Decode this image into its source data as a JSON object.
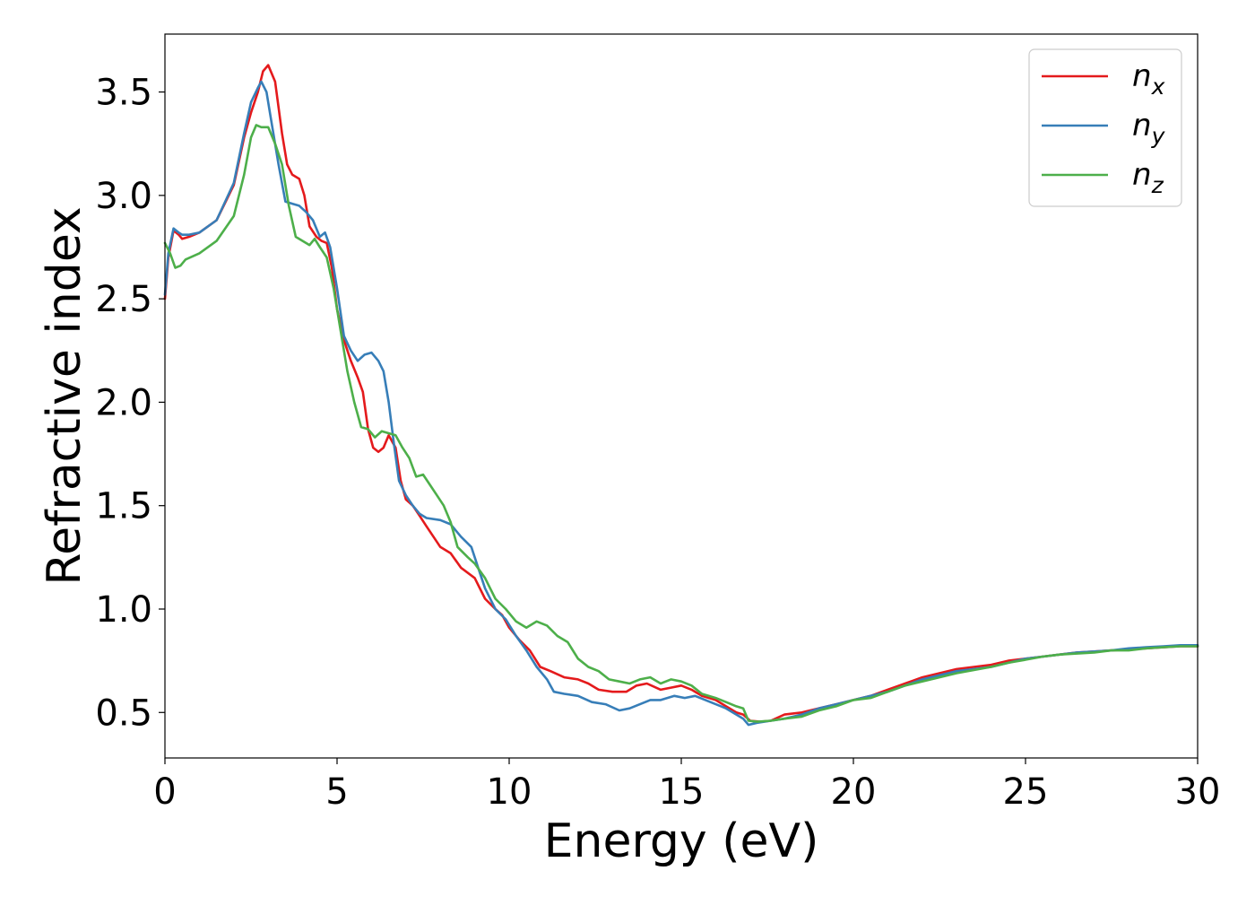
{
  "chart_data": {
    "type": "line",
    "title": "",
    "xlabel": "Energy (eV)",
    "ylabel": "Refractive index",
    "xlim": [
      0,
      30
    ],
    "ylim": [
      0.28,
      3.78
    ],
    "xticks": [
      0,
      5,
      10,
      15,
      20,
      25,
      30
    ],
    "yticks": [
      0.5,
      1.0,
      1.5,
      2.0,
      2.5,
      3.0,
      3.5
    ],
    "grid": false,
    "legend_position": "top-right",
    "series": [
      {
        "name": "n",
        "subscript": "x",
        "color": "#e41a1c",
        "points": [
          [
            0,
            2.5
          ],
          [
            0.1,
            2.7
          ],
          [
            0.25,
            2.83
          ],
          [
            0.4,
            2.81
          ],
          [
            0.5,
            2.79
          ],
          [
            0.7,
            2.8
          ],
          [
            1.0,
            2.82
          ],
          [
            1.5,
            2.88
          ],
          [
            2.0,
            3.05
          ],
          [
            2.3,
            3.28
          ],
          [
            2.5,
            3.4
          ],
          [
            2.7,
            3.5
          ],
          [
            2.85,
            3.6
          ],
          [
            3.0,
            3.63
          ],
          [
            3.2,
            3.55
          ],
          [
            3.4,
            3.3
          ],
          [
            3.55,
            3.15
          ],
          [
            3.7,
            3.1
          ],
          [
            3.9,
            3.08
          ],
          [
            4.05,
            3.0
          ],
          [
            4.2,
            2.85
          ],
          [
            4.4,
            2.8
          ],
          [
            4.55,
            2.78
          ],
          [
            4.7,
            2.77
          ],
          [
            4.85,
            2.65
          ],
          [
            5.0,
            2.45
          ],
          [
            5.2,
            2.3
          ],
          [
            5.4,
            2.2
          ],
          [
            5.6,
            2.12
          ],
          [
            5.75,
            2.05
          ],
          [
            5.9,
            1.87
          ],
          [
            6.05,
            1.78
          ],
          [
            6.2,
            1.76
          ],
          [
            6.35,
            1.78
          ],
          [
            6.5,
            1.84
          ],
          [
            6.7,
            1.78
          ],
          [
            6.85,
            1.62
          ],
          [
            7.0,
            1.53
          ],
          [
            7.2,
            1.5
          ],
          [
            7.4,
            1.45
          ],
          [
            7.6,
            1.4
          ],
          [
            7.8,
            1.35
          ],
          [
            8.0,
            1.3
          ],
          [
            8.3,
            1.27
          ],
          [
            8.6,
            1.2
          ],
          [
            9.0,
            1.15
          ],
          [
            9.3,
            1.05
          ],
          [
            9.6,
            1.0
          ],
          [
            9.8,
            0.97
          ],
          [
            10.0,
            0.91
          ],
          [
            10.3,
            0.85
          ],
          [
            10.6,
            0.8
          ],
          [
            10.9,
            0.72
          ],
          [
            11.2,
            0.7
          ],
          [
            11.6,
            0.67
          ],
          [
            12.0,
            0.66
          ],
          [
            12.3,
            0.64
          ],
          [
            12.6,
            0.61
          ],
          [
            13.0,
            0.6
          ],
          [
            13.4,
            0.6
          ],
          [
            13.7,
            0.63
          ],
          [
            14.0,
            0.64
          ],
          [
            14.4,
            0.61
          ],
          [
            14.7,
            0.62
          ],
          [
            15.0,
            0.63
          ],
          [
            15.3,
            0.61
          ],
          [
            15.6,
            0.58
          ],
          [
            16.0,
            0.56
          ],
          [
            16.3,
            0.53
          ],
          [
            16.6,
            0.5
          ],
          [
            16.8,
            0.49
          ],
          [
            17.0,
            0.46
          ],
          [
            17.3,
            0.455
          ],
          [
            17.6,
            0.46
          ],
          [
            18.0,
            0.49
          ],
          [
            18.5,
            0.5
          ],
          [
            19.0,
            0.52
          ],
          [
            19.5,
            0.54
          ],
          [
            20.0,
            0.56
          ],
          [
            20.5,
            0.58
          ],
          [
            21.0,
            0.61
          ],
          [
            21.5,
            0.64
          ],
          [
            22.0,
            0.67
          ],
          [
            22.5,
            0.69
          ],
          [
            23.0,
            0.71
          ],
          [
            23.5,
            0.72
          ],
          [
            24.0,
            0.73
          ],
          [
            24.5,
            0.75
          ],
          [
            25.0,
            0.76
          ],
          [
            25.5,
            0.77
          ],
          [
            26.0,
            0.78
          ],
          [
            26.5,
            0.79
          ],
          [
            27.0,
            0.795
          ],
          [
            27.5,
            0.8
          ],
          [
            28.0,
            0.805
          ],
          [
            28.5,
            0.81
          ],
          [
            29.0,
            0.815
          ],
          [
            29.5,
            0.82
          ],
          [
            30.0,
            0.82
          ]
        ]
      },
      {
        "name": "n",
        "subscript": "y",
        "color": "#377eb8",
        "points": [
          [
            0,
            2.52
          ],
          [
            0.1,
            2.72
          ],
          [
            0.25,
            2.84
          ],
          [
            0.4,
            2.82
          ],
          [
            0.5,
            2.81
          ],
          [
            0.7,
            2.81
          ],
          [
            1.0,
            2.82
          ],
          [
            1.5,
            2.88
          ],
          [
            2.0,
            3.06
          ],
          [
            2.3,
            3.3
          ],
          [
            2.5,
            3.45
          ],
          [
            2.7,
            3.52
          ],
          [
            2.8,
            3.55
          ],
          [
            2.95,
            3.5
          ],
          [
            3.1,
            3.35
          ],
          [
            3.3,
            3.15
          ],
          [
            3.5,
            2.97
          ],
          [
            3.7,
            2.96
          ],
          [
            3.9,
            2.95
          ],
          [
            4.1,
            2.92
          ],
          [
            4.3,
            2.88
          ],
          [
            4.5,
            2.8
          ],
          [
            4.65,
            2.82
          ],
          [
            4.8,
            2.75
          ],
          [
            5.0,
            2.55
          ],
          [
            5.2,
            2.32
          ],
          [
            5.4,
            2.25
          ],
          [
            5.6,
            2.2
          ],
          [
            5.8,
            2.23
          ],
          [
            6.0,
            2.24
          ],
          [
            6.2,
            2.2
          ],
          [
            6.35,
            2.15
          ],
          [
            6.5,
            2.0
          ],
          [
            6.65,
            1.8
          ],
          [
            6.8,
            1.62
          ],
          [
            7.0,
            1.55
          ],
          [
            7.2,
            1.5
          ],
          [
            7.4,
            1.46
          ],
          [
            7.6,
            1.44
          ],
          [
            8.0,
            1.43
          ],
          [
            8.3,
            1.41
          ],
          [
            8.6,
            1.35
          ],
          [
            8.9,
            1.3
          ],
          [
            9.1,
            1.2
          ],
          [
            9.3,
            1.1
          ],
          [
            9.6,
            1.0
          ],
          [
            9.9,
            0.95
          ],
          [
            10.2,
            0.87
          ],
          [
            10.5,
            0.8
          ],
          [
            10.8,
            0.72
          ],
          [
            11.1,
            0.66
          ],
          [
            11.3,
            0.6
          ],
          [
            11.6,
            0.59
          ],
          [
            12.0,
            0.58
          ],
          [
            12.4,
            0.55
          ],
          [
            12.8,
            0.54
          ],
          [
            13.2,
            0.51
          ],
          [
            13.5,
            0.52
          ],
          [
            13.8,
            0.54
          ],
          [
            14.1,
            0.56
          ],
          [
            14.4,
            0.56
          ],
          [
            14.8,
            0.58
          ],
          [
            15.1,
            0.57
          ],
          [
            15.4,
            0.58
          ],
          [
            15.7,
            0.56
          ],
          [
            16.0,
            0.54
          ],
          [
            16.3,
            0.52
          ],
          [
            16.6,
            0.49
          ],
          [
            16.8,
            0.47
          ],
          [
            16.95,
            0.44
          ],
          [
            17.2,
            0.45
          ],
          [
            17.6,
            0.46
          ],
          [
            18.0,
            0.47
          ],
          [
            18.5,
            0.49
          ],
          [
            19.0,
            0.52
          ],
          [
            19.5,
            0.54
          ],
          [
            20.0,
            0.56
          ],
          [
            20.5,
            0.58
          ],
          [
            21.0,
            0.6
          ],
          [
            21.5,
            0.63
          ],
          [
            22.0,
            0.66
          ],
          [
            22.5,
            0.68
          ],
          [
            23.0,
            0.7
          ],
          [
            23.5,
            0.71
          ],
          [
            24.0,
            0.72
          ],
          [
            24.5,
            0.74
          ],
          [
            25.0,
            0.76
          ],
          [
            25.5,
            0.77
          ],
          [
            26.0,
            0.78
          ],
          [
            26.5,
            0.79
          ],
          [
            27.0,
            0.795
          ],
          [
            27.5,
            0.8
          ],
          [
            28.0,
            0.81
          ],
          [
            28.5,
            0.815
          ],
          [
            29.0,
            0.82
          ],
          [
            29.5,
            0.825
          ],
          [
            30.0,
            0.825
          ]
        ]
      },
      {
        "name": "n",
        "subscript": "z",
        "color": "#4daf4a",
        "points": [
          [
            0,
            2.77
          ],
          [
            0.15,
            2.72
          ],
          [
            0.3,
            2.65
          ],
          [
            0.45,
            2.66
          ],
          [
            0.6,
            2.69
          ],
          [
            1.0,
            2.72
          ],
          [
            1.5,
            2.78
          ],
          [
            2.0,
            2.9
          ],
          [
            2.3,
            3.1
          ],
          [
            2.5,
            3.28
          ],
          [
            2.65,
            3.34
          ],
          [
            2.8,
            3.33
          ],
          [
            3.0,
            3.33
          ],
          [
            3.2,
            3.25
          ],
          [
            3.4,
            3.15
          ],
          [
            3.6,
            2.95
          ],
          [
            3.8,
            2.8
          ],
          [
            4.0,
            2.78
          ],
          [
            4.2,
            2.76
          ],
          [
            4.35,
            2.79
          ],
          [
            4.5,
            2.75
          ],
          [
            4.7,
            2.7
          ],
          [
            4.9,
            2.55
          ],
          [
            5.1,
            2.35
          ],
          [
            5.3,
            2.15
          ],
          [
            5.5,
            2.0
          ],
          [
            5.7,
            1.88
          ],
          [
            5.9,
            1.87
          ],
          [
            6.1,
            1.83
          ],
          [
            6.3,
            1.86
          ],
          [
            6.5,
            1.85
          ],
          [
            6.7,
            1.84
          ],
          [
            6.9,
            1.78
          ],
          [
            7.1,
            1.73
          ],
          [
            7.3,
            1.64
          ],
          [
            7.5,
            1.65
          ],
          [
            7.7,
            1.6
          ],
          [
            7.9,
            1.55
          ],
          [
            8.1,
            1.5
          ],
          [
            8.3,
            1.42
          ],
          [
            8.5,
            1.3
          ],
          [
            8.8,
            1.25
          ],
          [
            9.0,
            1.22
          ],
          [
            9.3,
            1.15
          ],
          [
            9.6,
            1.05
          ],
          [
            9.9,
            1.0
          ],
          [
            10.2,
            0.94
          ],
          [
            10.5,
            0.91
          ],
          [
            10.8,
            0.94
          ],
          [
            11.1,
            0.92
          ],
          [
            11.4,
            0.87
          ],
          [
            11.7,
            0.84
          ],
          [
            12.0,
            0.76
          ],
          [
            12.3,
            0.72
          ],
          [
            12.6,
            0.7
          ],
          [
            12.9,
            0.66
          ],
          [
            13.2,
            0.65
          ],
          [
            13.5,
            0.64
          ],
          [
            13.8,
            0.66
          ],
          [
            14.1,
            0.67
          ],
          [
            14.4,
            0.64
          ],
          [
            14.7,
            0.66
          ],
          [
            15.0,
            0.65
          ],
          [
            15.3,
            0.63
          ],
          [
            15.6,
            0.59
          ],
          [
            16.0,
            0.57
          ],
          [
            16.3,
            0.55
          ],
          [
            16.6,
            0.53
          ],
          [
            16.8,
            0.52
          ],
          [
            16.95,
            0.46
          ],
          [
            17.2,
            0.455
          ],
          [
            17.6,
            0.46
          ],
          [
            18.0,
            0.47
          ],
          [
            18.5,
            0.48
          ],
          [
            19.0,
            0.51
          ],
          [
            19.5,
            0.53
          ],
          [
            20.0,
            0.56
          ],
          [
            20.5,
            0.57
          ],
          [
            21.0,
            0.6
          ],
          [
            21.5,
            0.63
          ],
          [
            22.0,
            0.65
          ],
          [
            22.5,
            0.67
          ],
          [
            23.0,
            0.69
          ],
          [
            23.5,
            0.705
          ],
          [
            24.0,
            0.72
          ],
          [
            24.5,
            0.74
          ],
          [
            25.0,
            0.755
          ],
          [
            25.5,
            0.77
          ],
          [
            26.0,
            0.78
          ],
          [
            26.5,
            0.785
          ],
          [
            27.0,
            0.79
          ],
          [
            27.5,
            0.8
          ],
          [
            28.0,
            0.8
          ],
          [
            28.5,
            0.81
          ],
          [
            29.0,
            0.815
          ],
          [
            29.5,
            0.82
          ],
          [
            30.0,
            0.82
          ]
        ]
      }
    ]
  }
}
